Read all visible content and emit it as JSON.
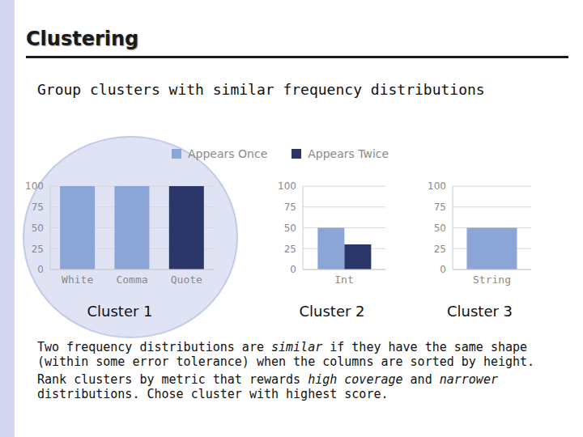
{
  "slide_title": "Clustering",
  "heading": "Group clusters with similar frequency distributions",
  "chart_data": [
    {
      "type": "bar",
      "title": "Cluster 1",
      "categories": [
        "White",
        "Comma",
        "Quote"
      ],
      "series": [
        {
          "name": "Appears Once",
          "color": "#8ba5d6",
          "values": [
            100,
            100,
            null
          ]
        },
        {
          "name": "Appears Twice",
          "color": "#2b3668",
          "values": [
            null,
            null,
            100
          ]
        }
      ],
      "stacked": true,
      "ylim": [
        0,
        100
      ],
      "yticks": [
        0,
        25,
        50,
        75,
        100
      ],
      "grid": true,
      "legend": "top"
    },
    {
      "type": "bar",
      "title": "Cluster 2",
      "categories": [
        "Int"
      ],
      "series": [
        {
          "color": "#8ba5d6",
          "values": [
            50
          ]
        },
        {
          "color": "#2b3668",
          "values": [
            30
          ]
        }
      ],
      "ylim": [
        0,
        100
      ],
      "yticks": [
        0,
        25,
        50,
        75,
        100
      ],
      "grid": true
    },
    {
      "type": "bar",
      "title": "Cluster 3",
      "categories": [
        "String"
      ],
      "series": [
        {
          "color": "#8ba5d6",
          "values": [
            50
          ]
        }
      ],
      "ylim": [
        0,
        100
      ],
      "yticks": [
        0,
        25,
        50,
        75,
        100
      ],
      "grid": true
    }
  ],
  "notes": [
    [
      {
        "text": "Two frequency distributions are "
      },
      {
        "text": "similar",
        "italic": true
      },
      {
        "text": " if they have the same shape (within some error tolerance) when the columns are sorted by height."
      }
    ],
    [
      {
        "text": "Rank clusters by metric that rewards "
      },
      {
        "text": "high coverage",
        "italic": true
      },
      {
        "text": " and "
      },
      {
        "text": "narrower",
        "italic": true
      },
      {
        "text": " distributions. Chose cluster with highest score."
      }
    ]
  ]
}
